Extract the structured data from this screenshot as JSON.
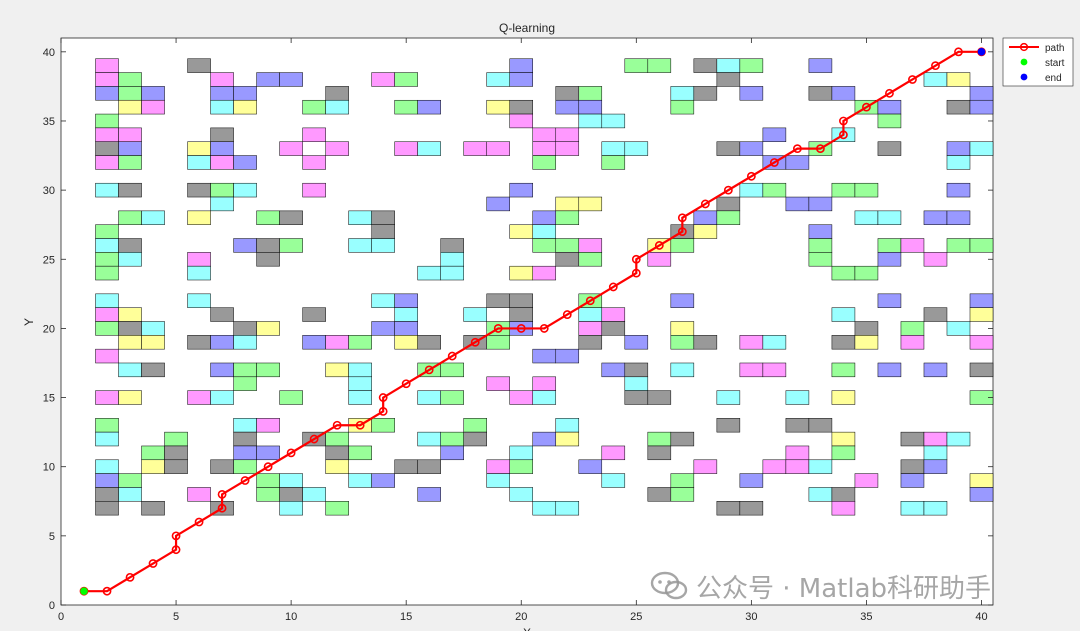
{
  "chart_data": {
    "type": "line",
    "title": "Q-learning",
    "xlabel": "X",
    "ylabel": "Y",
    "xlim": [
      0,
      40.5
    ],
    "ylim": [
      0,
      41
    ],
    "xticks": [
      0,
      5,
      10,
      15,
      20,
      25,
      30,
      35,
      40
    ],
    "yticks": [
      0,
      5,
      10,
      15,
      20,
      25,
      30,
      35,
      40
    ],
    "grid": false,
    "legend_position": "top-right",
    "legend": [
      {
        "label": "path",
        "color": "#ff0000",
        "marker": "circle-line"
      },
      {
        "label": "start",
        "color": "#00ff00",
        "marker": "dot"
      },
      {
        "label": "end",
        "color": "#0000ff",
        "marker": "dot"
      }
    ],
    "path": {
      "name": "path",
      "color": "#ff0000",
      "x": [
        1,
        2,
        3,
        4,
        5,
        5,
        6,
        7,
        7,
        8,
        9,
        10,
        11,
        12,
        13,
        14,
        14,
        15,
        16,
        17,
        18,
        19,
        20,
        21,
        22,
        23,
        24,
        25,
        25,
        26,
        27,
        27,
        28,
        29,
        30,
        31,
        32,
        33,
        34,
        34,
        35,
        36,
        37,
        38,
        39,
        40
      ],
      "y": [
        1,
        1,
        2,
        3,
        4,
        5,
        6,
        7,
        8,
        9,
        10,
        11,
        12,
        13,
        13,
        14,
        15,
        16,
        17,
        18,
        19,
        20,
        20,
        20,
        21,
        22,
        23,
        24,
        25,
        26,
        27,
        28,
        29,
        30,
        31,
        32,
        33,
        33,
        34,
        35,
        36,
        37,
        38,
        39,
        40,
        40
      ]
    },
    "start": {
      "name": "start",
      "x": 1,
      "y": 1,
      "color": "#00ff00"
    },
    "end": {
      "name": "end",
      "x": 40,
      "y": 40,
      "color": "#0000ff"
    },
    "obstacle_colors": {
      "M": "#ff99ff",
      "G": "#99ff99",
      "B": "#9999ff",
      "Y": "#ffff99",
      "C": "#99ffff",
      "K": "#999999"
    },
    "obstacle_map_rows_top_to_bottom": [
      "................................................",
      "..M...K.............B....GG.KCG..B..........K...B",
      "..MG...M.BB...MG...CB........K........CY...C..GGM",
      "..BGB..BB...K.........KG...CK.B..KB.....B....YY",
      "...YM..CY..GC..GB..YK.BB...G.......GB..KB.M..GG.",
      "..G.................M..CC...........G.....K...C.",
      "..MM...K...M.........MM........B..C.......M..CC..",
      "..KB..YB..M.M..MC.MM.MM.CC...KB..G..K..BC..K..MY.",
      "..MG..CMB..M.........G..G......BB......C.....B..",
      "..........................................",
      "..CK..KGC..M........B.........CG..GG...B.B..M..KK",
      ".......C...........B..YY.....K..BB.......KG..",
      "...GC.Y..GK..CK......BG.....BG.....CC.BB..BBB..M..",
      "..G...........K.....YC.....KY....B.......K..GC..",
      "..CK....BKG..CC..K...GGM..YG.....G..GM.GG.......",
      "..GC..M..K.......C....KG..M......G..B.M..G....GC.M",
      "..G...C.........CC..YM............GG.......C.....",
      "....................................................",
      "..C...C.......CB...KK..G...B........B...B.",
      "..MY...K...K...C..C.K..CM.........C...K.Y.MG..",
      "..GKC...KY....BB...GB..MK..Y.......K.G.C..KM....",
      "...YY.KBC..BMG.YK.KG...K.B.GK.MC..KY.M..MKBM.",
      "..M..................BB.....................",
      "...CK..BGG..YC..GG......BK.C..MM..G.B.B.K",
      "........G....C.....M.M...C...............M....",
      "..MY..MC..G..C..CG..MC...KK..C..C.Y.....G.....",
      "..............................................",
      "..G.....CM...YG...G...C......K..KK.......",
      "..C..G..K..KG...CGK..BY...GK......Y..KMC.",
      "....GK..BB..KG...B..C...M.K.....M.G...C...",
      "..C.YK.KG...Y..KK..MG..B....M..MMC...KB..GGB",
      "..BG.....GC..CB....C....C..G..B....M.B..YGM",
      "..KC..M..GKC....B...C.....KG.....CK.....BG.",
      "..K.K..K..C.G........CC......KK...M..CC..CC"
    ]
  }
}
